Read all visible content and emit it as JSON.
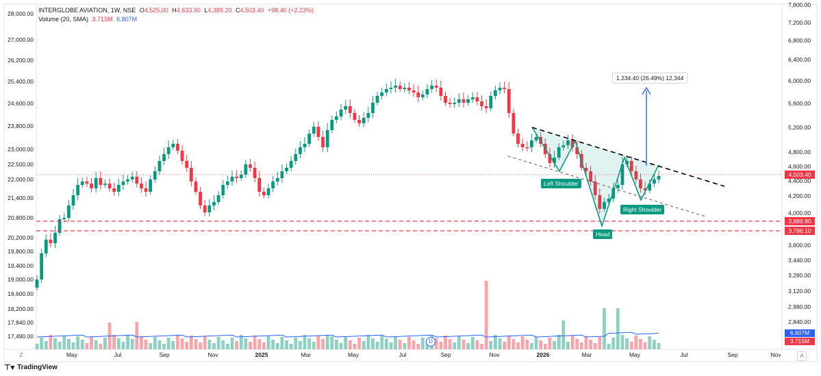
{
  "header": {
    "symbol": "INTERGLOBE AVIATION, 1W, NSE",
    "open_label": "O",
    "open": "4,525.00",
    "high_label": "H",
    "high": "4,633.90",
    "low_label": "L",
    "low": "4,389.20",
    "close_label": "C",
    "close": "4,503.40",
    "change": "+98.40 (+2.23%)",
    "volume_label": "Volume (20, SMA)",
    "volume": "3.715M",
    "volume_sma": "6.807M"
  },
  "colors": {
    "up": "#089981",
    "down": "#f23645",
    "vol_up": "#8ed0c2",
    "vol_down": "#f7a5ab",
    "sma": "#2962ff",
    "hline": "#f23645",
    "pattern": "#089981"
  },
  "left_axis_ticks": [
    "28,000.00",
    "27,000.00",
    "26,200.00",
    "25,400.00",
    "24,600.00",
    "23,800.00",
    "23,000.00",
    "22,500.00",
    "22,000.00",
    "21,400.00",
    "20,800.00",
    "20,200.00",
    "19,800.00",
    "19,400.00",
    "19,000.00",
    "18,600.00",
    "18,200.00",
    "17,840.00",
    "17,490.00"
  ],
  "right_axis_ticks": [
    "7,600.00",
    "7,200.00",
    "6,800.00",
    "6,400.00",
    "6,000.00",
    "5,600.00",
    "5,200.00",
    "4,800.00",
    "4,600.00",
    "4,400.00",
    "4,200.00",
    "4,000.00",
    "3,800.00",
    "3,600.00",
    "3,440.00",
    "3,280.00",
    "3,120.00",
    "2,980.00",
    "2,840.00"
  ],
  "price_tags": [
    {
      "label": "4,503.40",
      "kind": "last"
    },
    {
      "label": "3,889.80",
      "kind": "line"
    },
    {
      "label": "3,786.10",
      "kind": "line"
    }
  ],
  "volume_tags": [
    {
      "label": "6.807M",
      "kind": "sma"
    },
    {
      "label": "3.715M",
      "kind": "vol"
    }
  ],
  "time_axis_labels": [
    "May",
    "Jul",
    "Sep",
    "Nov",
    "2025",
    "Mar",
    "May",
    "Jul",
    "Sep",
    "Nov",
    "2026",
    "Mar",
    "May",
    "Jul",
    "Sep",
    "Nov"
  ],
  "annotations": {
    "left_shoulder": "Left Shoulder",
    "head": "Head",
    "right_shoulder": "Right Shoulder",
    "target": "1,234.40 (26.49%) 12,344"
  },
  "dividend_marker": "D",
  "corner_left": "Z",
  "corner_right": "A",
  "footer": {
    "brand": "TradingView"
  }
}
